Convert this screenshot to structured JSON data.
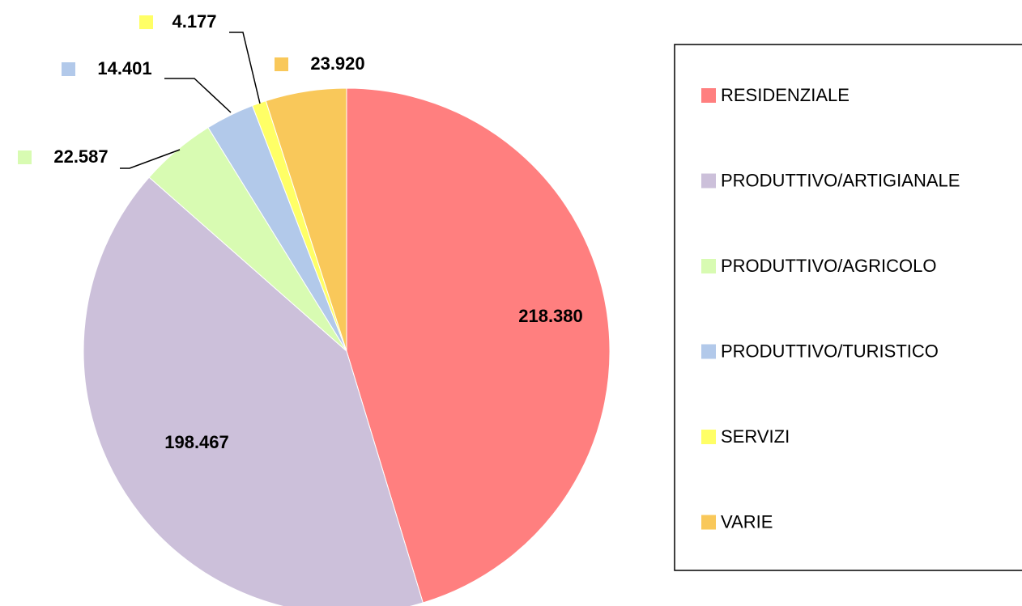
{
  "chart_data": {
    "type": "pie",
    "categories": [
      "RESIDENZIALE",
      "PRODUTTIVO/ARTIGIANALE",
      "PRODUTTIVO/AGRICOLO",
      "PRODUTTIVO/TURISTICO",
      "SERVIZI",
      "VARIE"
    ],
    "values": [
      218380,
      198467,
      22587,
      14401,
      4177,
      23920
    ],
    "value_labels": [
      "218.380",
      "198.467",
      "22.587",
      "14.401",
      "4.177",
      "23.920"
    ],
    "colors": [
      "#ff7f7f",
      "#ccc0da",
      "#d8fbb2",
      "#b2c9ea",
      "#ffff66",
      "#f9c85a"
    ],
    "legend": "right"
  }
}
